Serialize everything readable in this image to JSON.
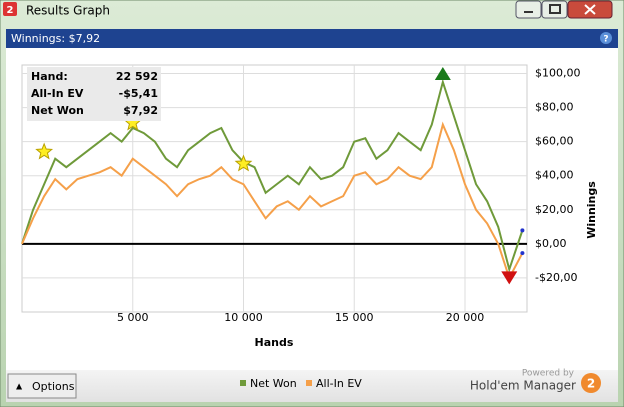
{
  "window": {
    "title": "Results Graph",
    "header": "Winnings: $7,92",
    "options_button": "Options",
    "powered_by": "Powered by",
    "brand": "Hold'em Manager"
  },
  "stats": [
    {
      "label": "Hand:",
      "value": "22 592"
    },
    {
      "label": "All-In EV",
      "value": "-$5,41"
    },
    {
      "label": "Net Won",
      "value": "$7,92"
    }
  ],
  "chart_data": {
    "type": "line",
    "x_label": "Hands",
    "y_label": "Winnings",
    "x": [
      0,
      500,
      1000,
      1500,
      2000,
      2500,
      3000,
      3500,
      4000,
      4500,
      5000,
      5500,
      6000,
      6500,
      7000,
      7500,
      8000,
      8500,
      9000,
      9500,
      10000,
      10500,
      11000,
      11500,
      12000,
      12500,
      13000,
      13500,
      14000,
      14500,
      15000,
      15500,
      16000,
      16500,
      17000,
      17500,
      18000,
      18500,
      19000,
      19500,
      20000,
      20500,
      21000,
      21500,
      22000,
      22592
    ],
    "series": [
      {
        "name": "Net Won",
        "color": "#6f9a3a",
        "values": [
          0,
          20,
          35,
          50,
          45,
          50,
          55,
          60,
          65,
          60,
          68,
          65,
          60,
          50,
          45,
          55,
          60,
          65,
          68,
          55,
          48,
          45,
          30,
          35,
          40,
          35,
          45,
          38,
          40,
          45,
          60,
          62,
          50,
          55,
          65,
          60,
          55,
          70,
          95,
          75,
          55,
          35,
          25,
          10,
          -15,
          7.92
        ]
      },
      {
        "name": "All-In EV",
        "color": "#f5a04a",
        "values": [
          0,
          15,
          28,
          38,
          32,
          38,
          40,
          42,
          45,
          40,
          50,
          45,
          40,
          35,
          28,
          35,
          38,
          40,
          45,
          38,
          35,
          25,
          15,
          22,
          25,
          20,
          28,
          22,
          25,
          28,
          40,
          42,
          35,
          38,
          45,
          40,
          38,
          45,
          70,
          55,
          35,
          20,
          12,
          0,
          -20,
          -5.41
        ]
      }
    ],
    "stars": [
      {
        "x": 1000,
        "y": 54
      },
      {
        "x": 5000,
        "y": 71
      },
      {
        "x": 10000,
        "y": 47
      }
    ],
    "xlim": [
      0,
      22800
    ],
    "ylim": [
      -40,
      105
    ],
    "xticks": [
      {
        "value": 5000,
        "label": "5 000"
      },
      {
        "value": 10000,
        "label": "10 000"
      },
      {
        "value": 15000,
        "label": "15 000"
      },
      {
        "value": 20000,
        "label": "20 000"
      }
    ],
    "yticks": [
      {
        "value": -20,
        "label": "-$20,00"
      },
      {
        "value": 0,
        "label": "$0,00"
      },
      {
        "value": 20,
        "label": "$20,00"
      },
      {
        "value": 40,
        "label": "$40,00"
      },
      {
        "value": 60,
        "label": "$60,00"
      },
      {
        "value": 80,
        "label": "$80,00"
      },
      {
        "value": 100,
        "label": "$100,00"
      }
    ],
    "grid": true
  }
}
